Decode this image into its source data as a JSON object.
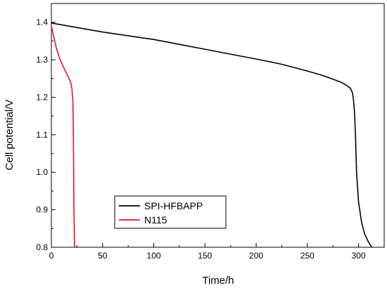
{
  "chart_data": {
    "type": "line",
    "title": "",
    "xlabel": "Time/h",
    "ylabel": "Cell potential/V",
    "xlim": [
      0,
      325
    ],
    "ylim": [
      0.8,
      1.45
    ],
    "x_ticks": [
      0,
      50,
      100,
      150,
      200,
      250,
      300
    ],
    "x_tick_labels": [
      "0",
      "50",
      "100",
      "150",
      "200",
      "250",
      "300"
    ],
    "y_ticks": [
      0.8,
      0.9,
      1.0,
      1.1,
      1.2,
      1.3,
      1.4
    ],
    "y_tick_labels": [
      "0.8",
      "0.9",
      "1.0",
      "1.1",
      "1.2",
      "1.3",
      "1.4"
    ],
    "grid": false,
    "legend_position": "bottom-left",
    "series": [
      {
        "name": "SPI-HFBAPP",
        "color": "#000000",
        "x": [
          0,
          25,
          50,
          75,
          100,
          125,
          150,
          175,
          200,
          225,
          250,
          265,
          275,
          283,
          288,
          292,
          294,
          295,
          296,
          297,
          298,
          300,
          303,
          306,
          310,
          313
        ],
        "y": [
          1.398,
          1.386,
          1.374,
          1.364,
          1.354,
          1.341,
          1.328,
          1.315,
          1.302,
          1.288,
          1.27,
          1.258,
          1.248,
          1.24,
          1.232,
          1.224,
          1.212,
          1.195,
          1.16,
          1.1,
          1.0,
          0.92,
          0.865,
          0.835,
          0.812,
          0.8
        ]
      },
      {
        "name": "N115",
        "color": "#e8141c",
        "x": [
          0,
          2,
          5,
          8,
          11,
          14,
          17,
          19,
          20,
          21,
          21.5,
          21.8,
          22,
          22.3,
          22.6
        ],
        "y": [
          1.39,
          1.365,
          1.33,
          1.305,
          1.285,
          1.268,
          1.252,
          1.238,
          1.225,
          1.19,
          1.1,
          1.0,
          0.92,
          0.85,
          0.8
        ]
      }
    ]
  }
}
